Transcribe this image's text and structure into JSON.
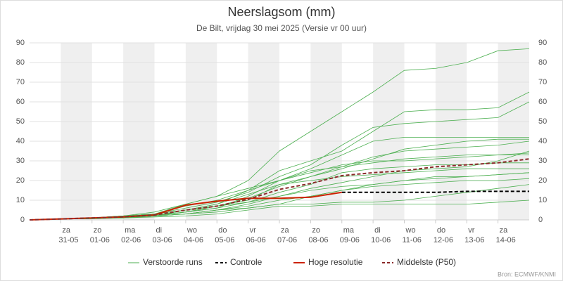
{
  "chart_data": {
    "type": "line",
    "title": "Neerslagsom (mm)",
    "subtitle": "De Bilt, vrijdag 30 mei 2025 (Versie vr 00 uur)",
    "source": "Bron: ECMWF/KNMI",
    "x": [
      "30-05",
      "31-05",
      "01-06",
      "02-06",
      "03-06",
      "04-06",
      "05-06",
      "06-06",
      "07-06",
      "08-06",
      "09-06",
      "10-06",
      "11-06",
      "12-06",
      "13-06",
      "14-06",
      "15-06"
    ],
    "xlim": [
      "30-05",
      "15-06"
    ],
    "xticks": [
      {
        "value": "31-05",
        "label": "za"
      },
      {
        "value": "01-06",
        "label": "zo"
      },
      {
        "value": "02-06",
        "label": "ma"
      },
      {
        "value": "03-06",
        "label": "di"
      },
      {
        "value": "04-06",
        "label": "wo"
      },
      {
        "value": "05-06",
        "label": "do"
      },
      {
        "value": "06-06",
        "label": "vr"
      },
      {
        "value": "07-06",
        "label": "za"
      },
      {
        "value": "08-06",
        "label": "zo"
      },
      {
        "value": "09-06",
        "label": "ma"
      },
      {
        "value": "10-06",
        "label": "di"
      },
      {
        "value": "11-06",
        "label": "wo"
      },
      {
        "value": "12-06",
        "label": "do"
      },
      {
        "value": "13-06",
        "label": "vr"
      },
      {
        "value": "14-06",
        "label": "za"
      }
    ],
    "ylim": [
      0,
      90
    ],
    "yticks": [
      0,
      10,
      20,
      30,
      40,
      50,
      60,
      70,
      80,
      90
    ],
    "grid": true,
    "ensemble": {
      "name": "Verstoorde runs",
      "color": "#4caf50",
      "members": [
        [
          0,
          0.5,
          1,
          2,
          3,
          8,
          12,
          20,
          35,
          45,
          55,
          65,
          76,
          77,
          80,
          86,
          87
        ],
        [
          0,
          0.5,
          1,
          2,
          3,
          5,
          8,
          15,
          25,
          30,
          35,
          45,
          55,
          56,
          56,
          57,
          65
        ],
        [
          0,
          0.5,
          1,
          1,
          2,
          4,
          6,
          12,
          20,
          26,
          33,
          40,
          42,
          42,
          42,
          42,
          42
        ],
        [
          0,
          0.5,
          1,
          1.5,
          2,
          5,
          7,
          10,
          18,
          22,
          27,
          32,
          35,
          36,
          37,
          38,
          40
        ],
        [
          0,
          0.5,
          1,
          1.5,
          2,
          3,
          5,
          8,
          12,
          16,
          19,
          22,
          25,
          26,
          27,
          30,
          35
        ],
        [
          0,
          0.5,
          1,
          1,
          2,
          3,
          5,
          7,
          10,
          12,
          15,
          17,
          18,
          19,
          20,
          20,
          21
        ],
        [
          0,
          0.5,
          0.5,
          1,
          2,
          3,
          4,
          6,
          8,
          8,
          9,
          9,
          10,
          12,
          14,
          16,
          18
        ],
        [
          0,
          0.5,
          1,
          2,
          4,
          8,
          12,
          16,
          20,
          24,
          28,
          30,
          30,
          31,
          32,
          33,
          34
        ],
        [
          0,
          0.5,
          1,
          1,
          1.5,
          2,
          3,
          5,
          7,
          7,
          8,
          8,
          8,
          8,
          8,
          9,
          10
        ],
        [
          0,
          0.5,
          1,
          2,
          3,
          6,
          9,
          14,
          22,
          28,
          38,
          47,
          49,
          50,
          51,
          52,
          60
        ],
        [
          0,
          0.5,
          1,
          1.5,
          2.5,
          4,
          6,
          9,
          14,
          18,
          24,
          26,
          27,
          28,
          28,
          29,
          29
        ],
        [
          0,
          0.5,
          1,
          2,
          3,
          7,
          10,
          15,
          20,
          25,
          27,
          29,
          31,
          32,
          33,
          33,
          33
        ],
        [
          0,
          0.5,
          1,
          1.5,
          2,
          3,
          5,
          6,
          8,
          12,
          15,
          18,
          20,
          22,
          22,
          23,
          24
        ],
        [
          0,
          0.5,
          1,
          1,
          2,
          5,
          8,
          13,
          18,
          20,
          22,
          23,
          24,
          25,
          26,
          26,
          26
        ],
        [
          0,
          0.5,
          1,
          2,
          3,
          5,
          7,
          9,
          12,
          15,
          17,
          18,
          20,
          21,
          22,
          23,
          24
        ],
        [
          0,
          0.5,
          1,
          1.5,
          2,
          4,
          7,
          11,
          17,
          22,
          26,
          31,
          36,
          38,
          40,
          41,
          41
        ]
      ]
    },
    "series": [
      {
        "name": "Controle",
        "color": "#000000",
        "dash": true,
        "values": [
          null,
          null,
          null,
          null,
          null,
          null,
          null,
          null,
          null,
          null,
          14,
          14,
          14,
          14,
          14.5,
          14.5,
          14.5
        ]
      },
      {
        "name": "Hoge resolutie",
        "color": "#cc2200",
        "dash": false,
        "values": [
          0,
          0.5,
          1,
          1.5,
          2.5,
          7.5,
          9.5,
          11,
          11,
          11.5,
          14,
          null,
          null,
          null,
          null,
          null,
          null
        ]
      },
      {
        "name": "Middelste (P50)",
        "color": "#8b2a2a",
        "dash": true,
        "values": [
          0,
          0.5,
          1,
          1.5,
          2.5,
          5,
          7,
          10.5,
          15.5,
          18.5,
          22.5,
          24,
          25,
          27,
          28,
          29,
          31
        ]
      }
    ]
  }
}
